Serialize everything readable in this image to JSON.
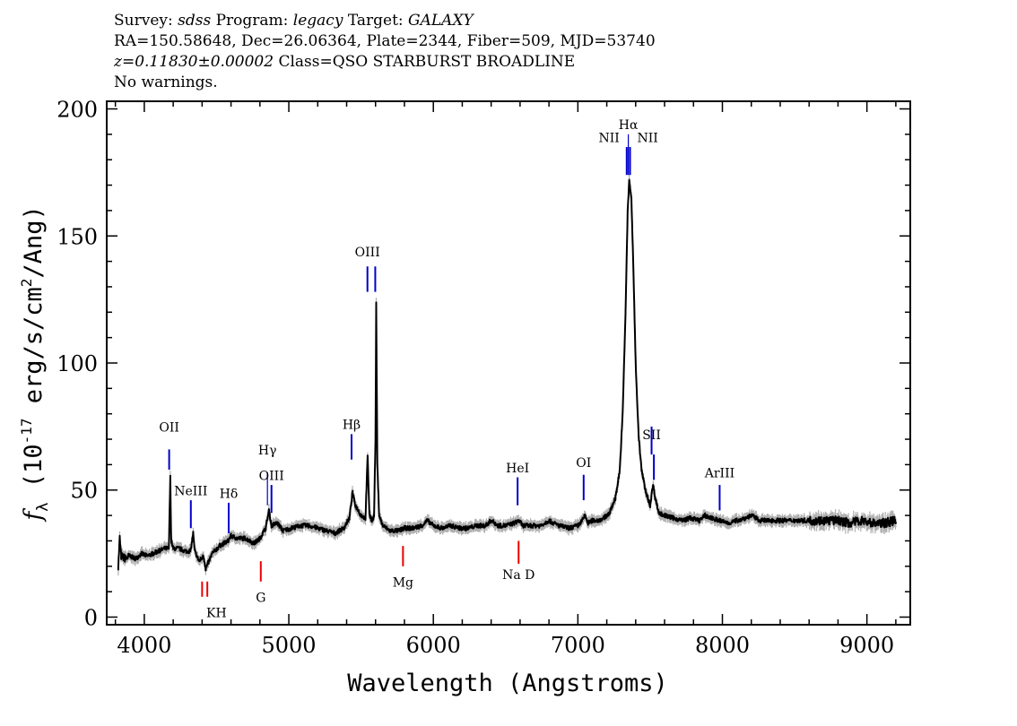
{
  "header": {
    "line1": {
      "survey_label": "Survey: ",
      "survey": "sdss",
      "program_label": " Program: ",
      "program": "legacy",
      "target_label": " Target: ",
      "target": "GALAXY"
    },
    "line2": "RA=150.58648, Dec=26.06364, Plate=2344, Fiber=509, MJD=53740",
    "line3": {
      "z": "z=0.11830±0.00002",
      "class": " Class=QSO STARBURST BROADLINE"
    },
    "line4": "No warnings."
  },
  "chart_data": {
    "type": "line",
    "xlabel": "Wavelength (Angstroms)",
    "ylabel": "f_λ (10^-17 erg/s/cm^2/Ang)",
    "xlim": [
      3740,
      9300
    ],
    "ylim": [
      -3,
      203
    ],
    "xticks": [
      4000,
      5000,
      6000,
      7000,
      8000,
      9000
    ],
    "yticks": [
      0,
      50,
      100,
      150,
      200
    ],
    "grid": false,
    "colors": {
      "flux": "#000000",
      "error": "#b0b0b0",
      "emission": "#0000cc",
      "absorption": "#ee0000"
    },
    "series": [
      {
        "name": "",
        "points": [
          [
            3820,
            20
          ],
          [
            3830,
            31
          ],
          [
            3840,
            24
          ],
          [
            3870,
            23
          ],
          [
            3900,
            24
          ],
          [
            3940,
            23
          ],
          [
            3980,
            25
          ],
          [
            4020,
            24
          ],
          [
            4060,
            25
          ],
          [
            4100,
            26
          ],
          [
            4140,
            27
          ],
          [
            4170,
            27
          ],
          [
            4180,
            55
          ],
          [
            4186,
            30
          ],
          [
            4200,
            27
          ],
          [
            4240,
            27
          ],
          [
            4280,
            26
          ],
          [
            4320,
            26
          ],
          [
            4338,
            33
          ],
          [
            4348,
            26
          ],
          [
            4380,
            22
          ],
          [
            4410,
            24
          ],
          [
            4425,
            19
          ],
          [
            4440,
            21
          ],
          [
            4470,
            25
          ],
          [
            4520,
            28
          ],
          [
            4580,
            30
          ],
          [
            4600,
            32
          ],
          [
            4640,
            31
          ],
          [
            4700,
            31
          ],
          [
            4760,
            29
          ],
          [
            4800,
            31
          ],
          [
            4840,
            35
          ],
          [
            4862,
            42
          ],
          [
            4880,
            36
          ],
          [
            4920,
            37
          ],
          [
            4960,
            34
          ],
          [
            5020,
            35
          ],
          [
            5080,
            36
          ],
          [
            5140,
            36
          ],
          [
            5200,
            35
          ],
          [
            5260,
            34
          ],
          [
            5320,
            33
          ],
          [
            5380,
            35
          ],
          [
            5420,
            39
          ],
          [
            5440,
            49
          ],
          [
            5460,
            44
          ],
          [
            5500,
            40
          ],
          [
            5530,
            39
          ],
          [
            5545,
            63
          ],
          [
            5558,
            40
          ],
          [
            5575,
            38
          ],
          [
            5590,
            40
          ],
          [
            5600,
            70
          ],
          [
            5605,
            123
          ],
          [
            5612,
            60
          ],
          [
            5625,
            40
          ],
          [
            5650,
            36
          ],
          [
            5700,
            34
          ],
          [
            5760,
            34
          ],
          [
            5800,
            35
          ],
          [
            5860,
            35
          ],
          [
            5920,
            36
          ],
          [
            5960,
            38
          ],
          [
            6000,
            36
          ],
          [
            6060,
            35
          ],
          [
            6120,
            36
          ],
          [
            6180,
            35
          ],
          [
            6240,
            35
          ],
          [
            6300,
            36
          ],
          [
            6360,
            36
          ],
          [
            6400,
            38
          ],
          [
            6450,
            36
          ],
          [
            6500,
            36
          ],
          [
            6560,
            37
          ],
          [
            6590,
            38
          ],
          [
            6620,
            36
          ],
          [
            6680,
            36
          ],
          [
            6740,
            36
          ],
          [
            6800,
            38
          ],
          [
            6830,
            37
          ],
          [
            6870,
            36
          ],
          [
            6940,
            35
          ],
          [
            7000,
            36
          ],
          [
            7030,
            38
          ],
          [
            7050,
            40
          ],
          [
            7070,
            37
          ],
          [
            7100,
            38
          ],
          [
            7140,
            38
          ],
          [
            7180,
            39
          ],
          [
            7220,
            41
          ],
          [
            7260,
            47
          ],
          [
            7290,
            58
          ],
          [
            7310,
            80
          ],
          [
            7330,
            120
          ],
          [
            7345,
            160
          ],
          [
            7355,
            172
          ],
          [
            7370,
            165
          ],
          [
            7385,
            135
          ],
          [
            7400,
            100
          ],
          [
            7420,
            72
          ],
          [
            7440,
            58
          ],
          [
            7470,
            49
          ],
          [
            7500,
            44
          ],
          [
            7520,
            52
          ],
          [
            7535,
            47
          ],
          [
            7560,
            41
          ],
          [
            7600,
            40
          ],
          [
            7660,
            39
          ],
          [
            7720,
            38
          ],
          [
            7780,
            39
          ],
          [
            7840,
            38
          ],
          [
            7880,
            40
          ],
          [
            7920,
            39
          ],
          [
            7980,
            38
          ],
          [
            8040,
            37
          ],
          [
            8100,
            38
          ],
          [
            8160,
            39
          ],
          [
            8200,
            40
          ],
          [
            8260,
            38
          ],
          [
            8320,
            38
          ],
          [
            8400,
            38
          ],
          [
            8480,
            38
          ],
          [
            8560,
            38
          ],
          [
            8640,
            38
          ],
          [
            8720,
            38
          ],
          [
            8800,
            38
          ],
          [
            8880,
            37
          ],
          [
            8960,
            38
          ],
          [
            9040,
            37
          ],
          [
            9120,
            37
          ],
          [
            9200,
            38
          ]
        ]
      }
    ],
    "lines": [
      {
        "label": "OII",
        "wave": 4172,
        "kind": "emission",
        "y1": 58,
        "y2": 66,
        "label_y": 73,
        "label_side": "above"
      },
      {
        "label": "NeIII",
        "wave": 4322,
        "kind": "emission",
        "y1": 35,
        "y2": 46,
        "label_y": 48,
        "label_side": "above"
      },
      {
        "label": "Hδ",
        "wave": 4584,
        "kind": "emission",
        "y1": 33,
        "y2": 45,
        "label_y": 47,
        "label_side": "above"
      },
      {
        "label": "Hγ",
        "wave": 4852,
        "kind": "emission",
        "y1": 44,
        "y2": 57,
        "label_y": 64,
        "label_side": "above"
      },
      {
        "label": "OIII",
        "wave": 4880,
        "kind": "emission",
        "y1": 41,
        "y2": 52,
        "label_y": 54,
        "label_side": "above"
      },
      {
        "label": "Hβ",
        "wave": 5434,
        "kind": "emission",
        "y1": 62,
        "y2": 72,
        "label_y": 74,
        "label_side": "above"
      },
      {
        "label": "OIII",
        "wave": 5544,
        "kind": "emission",
        "y1": 128,
        "y2": 138,
        "label_y": 142,
        "label_side": "above"
      },
      {
        "label": "",
        "wave": 5598,
        "kind": "emission",
        "y1": 128,
        "y2": 138
      },
      {
        "label": "NII",
        "wave": 7338,
        "kind": "emission",
        "y1": 174,
        "y2": 185,
        "label_y": 187,
        "label_side": "left"
      },
      {
        "label": "Hα",
        "wave": 7349,
        "kind": "emission",
        "y1": 174,
        "y2": 190,
        "label_y": 192,
        "label_side": "above"
      },
      {
        "label": "NII",
        "wave": 7361,
        "kind": "emission",
        "y1": 174,
        "y2": 185,
        "label_y": 187,
        "label_side": "right"
      },
      {
        "label": "HeI",
        "wave": 6583,
        "kind": "emission",
        "y1": 44,
        "y2": 55,
        "label_y": 57,
        "label_side": "above"
      },
      {
        "label": "OI",
        "wave": 7040,
        "kind": "emission",
        "y1": 46,
        "y2": 56,
        "label_y": 59,
        "label_side": "above"
      },
      {
        "label": "SII",
        "wave": 7510,
        "kind": "emission",
        "y1": 64,
        "y2": 75,
        "label_y": 70,
        "label_side": "above"
      },
      {
        "label": "",
        "wave": 7526,
        "kind": "emission",
        "y1": 54,
        "y2": 64
      },
      {
        "label": "ArIII",
        "wave": 7981,
        "kind": "emission",
        "y1": 42,
        "y2": 52,
        "label_y": 55,
        "label_side": "above"
      },
      {
        "label": "KH",
        "wave": 4400,
        "kind": "absorption",
        "y1": 8,
        "y2": 14,
        "label_y": 0,
        "label_side": "below"
      },
      {
        "label": "",
        "wave": 4436,
        "kind": "absorption",
        "y1": 8,
        "y2": 14
      },
      {
        "label": "G",
        "wave": 4806,
        "kind": "absorption",
        "y1": 14,
        "y2": 22,
        "label_y": 6,
        "label_side": "below"
      },
      {
        "label": "Mg",
        "wave": 5790,
        "kind": "absorption",
        "y1": 20,
        "y2": 28,
        "label_y": 12,
        "label_side": "below"
      },
      {
        "label": "Na D",
        "wave": 6590,
        "kind": "absorption",
        "y1": 21,
        "y2": 30,
        "label_y": 15,
        "label_side": "below"
      }
    ]
  }
}
